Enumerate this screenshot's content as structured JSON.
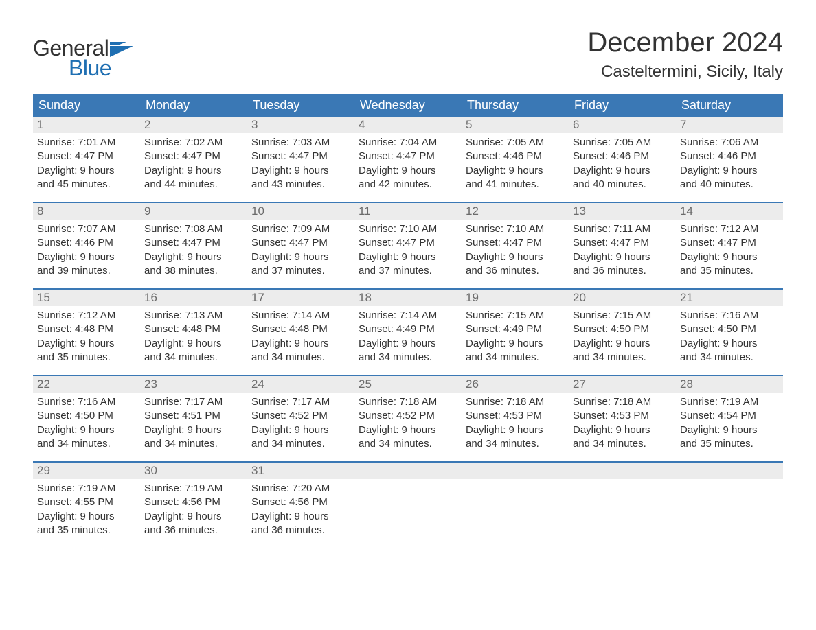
{
  "logo": {
    "text_general": "General",
    "text_blue": "Blue"
  },
  "title": "December 2024",
  "location": "Casteltermini, Sicily, Italy",
  "colors": {
    "header_bg": "#3a78b5",
    "header_text": "#ffffff",
    "daynum_bg": "#ececec",
    "daynum_text": "#6b6b6b",
    "body_text": "#333333",
    "week_border": "#3a78b5",
    "logo_blue": "#1f6fb2",
    "page_bg": "#ffffff"
  },
  "fonts": {
    "title_size_pt": 30,
    "location_size_pt": 18,
    "dow_size_pt": 14,
    "daynum_size_pt": 13,
    "body_size_pt": 11,
    "logo_size_pt": 24
  },
  "labels": {
    "sunrise": "Sunrise:",
    "sunset": "Sunset:",
    "daylight": "Daylight:",
    "and": "and",
    "hours": "hours",
    "minutes": "minutes."
  },
  "days_of_week": [
    "Sunday",
    "Monday",
    "Tuesday",
    "Wednesday",
    "Thursday",
    "Friday",
    "Saturday"
  ],
  "weeks": [
    [
      {
        "num": "1",
        "sunrise": "7:01 AM",
        "sunset": "4:47 PM",
        "dl_h": "9",
        "dl_m": "45"
      },
      {
        "num": "2",
        "sunrise": "7:02 AM",
        "sunset": "4:47 PM",
        "dl_h": "9",
        "dl_m": "44"
      },
      {
        "num": "3",
        "sunrise": "7:03 AM",
        "sunset": "4:47 PM",
        "dl_h": "9",
        "dl_m": "43"
      },
      {
        "num": "4",
        "sunrise": "7:04 AM",
        "sunset": "4:47 PM",
        "dl_h": "9",
        "dl_m": "42"
      },
      {
        "num": "5",
        "sunrise": "7:05 AM",
        "sunset": "4:46 PM",
        "dl_h": "9",
        "dl_m": "41"
      },
      {
        "num": "6",
        "sunrise": "7:05 AM",
        "sunset": "4:46 PM",
        "dl_h": "9",
        "dl_m": "40"
      },
      {
        "num": "7",
        "sunrise": "7:06 AM",
        "sunset": "4:46 PM",
        "dl_h": "9",
        "dl_m": "40"
      }
    ],
    [
      {
        "num": "8",
        "sunrise": "7:07 AM",
        "sunset": "4:46 PM",
        "dl_h": "9",
        "dl_m": "39"
      },
      {
        "num": "9",
        "sunrise": "7:08 AM",
        "sunset": "4:47 PM",
        "dl_h": "9",
        "dl_m": "38"
      },
      {
        "num": "10",
        "sunrise": "7:09 AM",
        "sunset": "4:47 PM",
        "dl_h": "9",
        "dl_m": "37"
      },
      {
        "num": "11",
        "sunrise": "7:10 AM",
        "sunset": "4:47 PM",
        "dl_h": "9",
        "dl_m": "37"
      },
      {
        "num": "12",
        "sunrise": "7:10 AM",
        "sunset": "4:47 PM",
        "dl_h": "9",
        "dl_m": "36"
      },
      {
        "num": "13",
        "sunrise": "7:11 AM",
        "sunset": "4:47 PM",
        "dl_h": "9",
        "dl_m": "36"
      },
      {
        "num": "14",
        "sunrise": "7:12 AM",
        "sunset": "4:47 PM",
        "dl_h": "9",
        "dl_m": "35"
      }
    ],
    [
      {
        "num": "15",
        "sunrise": "7:12 AM",
        "sunset": "4:48 PM",
        "dl_h": "9",
        "dl_m": "35"
      },
      {
        "num": "16",
        "sunrise": "7:13 AM",
        "sunset": "4:48 PM",
        "dl_h": "9",
        "dl_m": "34"
      },
      {
        "num": "17",
        "sunrise": "7:14 AM",
        "sunset": "4:48 PM",
        "dl_h": "9",
        "dl_m": "34"
      },
      {
        "num": "18",
        "sunrise": "7:14 AM",
        "sunset": "4:49 PM",
        "dl_h": "9",
        "dl_m": "34"
      },
      {
        "num": "19",
        "sunrise": "7:15 AM",
        "sunset": "4:49 PM",
        "dl_h": "9",
        "dl_m": "34"
      },
      {
        "num": "20",
        "sunrise": "7:15 AM",
        "sunset": "4:50 PM",
        "dl_h": "9",
        "dl_m": "34"
      },
      {
        "num": "21",
        "sunrise": "7:16 AM",
        "sunset": "4:50 PM",
        "dl_h": "9",
        "dl_m": "34"
      }
    ],
    [
      {
        "num": "22",
        "sunrise": "7:16 AM",
        "sunset": "4:50 PM",
        "dl_h": "9",
        "dl_m": "34"
      },
      {
        "num": "23",
        "sunrise": "7:17 AM",
        "sunset": "4:51 PM",
        "dl_h": "9",
        "dl_m": "34"
      },
      {
        "num": "24",
        "sunrise": "7:17 AM",
        "sunset": "4:52 PM",
        "dl_h": "9",
        "dl_m": "34"
      },
      {
        "num": "25",
        "sunrise": "7:18 AM",
        "sunset": "4:52 PM",
        "dl_h": "9",
        "dl_m": "34"
      },
      {
        "num": "26",
        "sunrise": "7:18 AM",
        "sunset": "4:53 PM",
        "dl_h": "9",
        "dl_m": "34"
      },
      {
        "num": "27",
        "sunrise": "7:18 AM",
        "sunset": "4:53 PM",
        "dl_h": "9",
        "dl_m": "34"
      },
      {
        "num": "28",
        "sunrise": "7:19 AM",
        "sunset": "4:54 PM",
        "dl_h": "9",
        "dl_m": "35"
      }
    ],
    [
      {
        "num": "29",
        "sunrise": "7:19 AM",
        "sunset": "4:55 PM",
        "dl_h": "9",
        "dl_m": "35"
      },
      {
        "num": "30",
        "sunrise": "7:19 AM",
        "sunset": "4:56 PM",
        "dl_h": "9",
        "dl_m": "36"
      },
      {
        "num": "31",
        "sunrise": "7:20 AM",
        "sunset": "4:56 PM",
        "dl_h": "9",
        "dl_m": "36"
      },
      null,
      null,
      null,
      null
    ]
  ]
}
